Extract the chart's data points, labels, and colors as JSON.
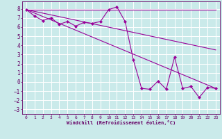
{
  "xlabel": "Windchill (Refroidissement éolien,°C)",
  "bg_color": "#caeaea",
  "grid_color": "#ffffff",
  "line_color": "#990099",
  "tick_color": "#660066",
  "xlim": [
    -0.5,
    23.5
  ],
  "ylim": [
    -3.5,
    8.8
  ],
  "yticks": [
    -3,
    -2,
    -1,
    0,
    1,
    2,
    3,
    4,
    5,
    6,
    7,
    8
  ],
  "xticks": [
    0,
    1,
    2,
    3,
    4,
    5,
    6,
    7,
    8,
    9,
    10,
    11,
    12,
    13,
    14,
    15,
    16,
    17,
    18,
    19,
    20,
    21,
    22,
    23
  ],
  "series": [
    {
      "x": [
        0,
        10,
        10,
        23
      ],
      "y": [
        7.9,
        7.9,
        7.9,
        7.9
      ],
      "marker": false
    },
    {
      "x": [
        0,
        1,
        2,
        3,
        4,
        5,
        6,
        7,
        8,
        9,
        10,
        11,
        12,
        13,
        14,
        15,
        16,
        17,
        18,
        19,
        20,
        21,
        22,
        23
      ],
      "y": [
        7.9,
        7.2,
        6.7,
        7.0,
        6.3,
        6.6,
        6.1,
        6.5,
        6.4,
        6.6,
        7.9,
        8.2,
        6.6,
        2.4,
        -0.7,
        -0.8,
        0.1,
        -0.8,
        2.7,
        -0.7,
        -0.5,
        -1.7,
        -0.6,
        -0.7
      ],
      "marker": true
    },
    {
      "x": [
        0,
        23
      ],
      "y": [
        7.9,
        3.5
      ],
      "marker": false
    },
    {
      "x": [
        0,
        23
      ],
      "y": [
        7.9,
        -0.7
      ],
      "marker": false
    }
  ]
}
